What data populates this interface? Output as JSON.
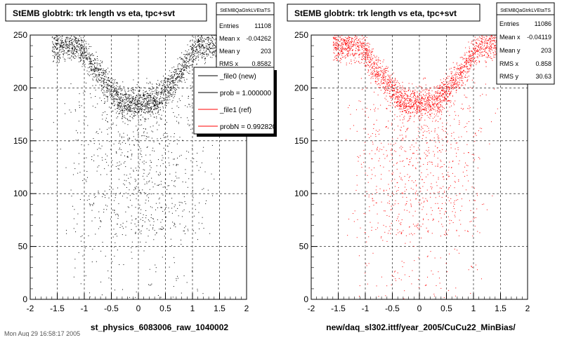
{
  "panels": [
    {
      "title": "StEMB globtrk: trk length vs eta, tpc+svt",
      "xlabel": "st_physics_6083006_raw_1040002",
      "stats": {
        "name": "StEMBQaGtrkLVEtaTS",
        "rows": [
          {
            "label": "Entries",
            "value": "11108"
          },
          {
            "label": "Mean x",
            "value": "-0.04262"
          },
          {
            "label": "Mean y",
            "value": "203"
          },
          {
            "label": "RMS x",
            "value": "0.8582"
          }
        ]
      },
      "legend": {
        "entries": [
          {
            "label": "_file0 (new)",
            "color": "#000000"
          },
          {
            "label": "prob = 1.000000",
            "color": "#000000"
          },
          {
            "label": "_file1 (ref)",
            "color": "#ff0000"
          },
          {
            "label": "probN = 0.992820",
            "color": "#ff0000"
          }
        ]
      },
      "point_color": "#000000",
      "seed": 11
    },
    {
      "title": "StEMB globtrk: trk length vs eta, tpc+svt",
      "xlabel": "new/daq_sl302.ittf/year_2005/CuCu22_MinBias/",
      "stats": {
        "name": "StEMBQaGtrkLVEtaTS",
        "rows": [
          {
            "label": "Entries",
            "value": "11086"
          },
          {
            "label": "Mean x",
            "value": "-0.04119"
          },
          {
            "label": "Mean y",
            "value": "203"
          },
          {
            "label": "RMS x",
            "value": "0.858"
          },
          {
            "label": "RMS y",
            "value": "30.63"
          }
        ]
      },
      "point_color": "#ff0000",
      "seed": 29
    }
  ],
  "footer_text": "Mon Aug 29 16:58:17 2005",
  "chart_data": [
    {
      "type": "scatter",
      "title": "StEMB globtrk: trk length vs eta, tpc+svt",
      "xlabel": "st_physics_6083006_raw_1040002",
      "ylabel": "",
      "xlim": [
        -2,
        2
      ],
      "ylim": [
        0,
        250
      ],
      "xticks": [
        -2,
        -1.5,
        -1,
        -0.5,
        0,
        0.5,
        1,
        1.5,
        2
      ],
      "yticks": [
        0,
        50,
        100,
        150,
        200,
        250
      ],
      "grid": true,
      "point_color": "#000000",
      "entries": 11108,
      "description_points": [
        {
          "x": -1.25,
          "y": 225
        },
        {
          "x": -1.0,
          "y": 235
        },
        {
          "x": -0.7,
          "y": 215
        },
        {
          "x": -0.4,
          "y": 200
        },
        {
          "x": -0.1,
          "y": 188
        },
        {
          "x": 0.1,
          "y": 188
        },
        {
          "x": 0.4,
          "y": 200
        },
        {
          "x": 0.7,
          "y": 215
        },
        {
          "x": 1.0,
          "y": 235
        },
        {
          "x": 1.3,
          "y": 240
        }
      ]
    },
    {
      "type": "scatter",
      "title": "StEMB globtrk: trk length vs eta, tpc+svt",
      "xlabel": "new/daq_sl302.ittf/year_2005/CuCu22_MinBias/",
      "ylabel": "",
      "xlim": [
        -2,
        2
      ],
      "ylim": [
        0,
        250
      ],
      "xticks": [
        -2,
        -1.5,
        -1,
        -0.5,
        0,
        0.5,
        1,
        1.5,
        2
      ],
      "yticks": [
        0,
        50,
        100,
        150,
        200,
        250
      ],
      "grid": true,
      "point_color": "#ff0000",
      "entries": 11086,
      "description_points": [
        {
          "x": -1.25,
          "y": 225
        },
        {
          "x": -1.0,
          "y": 235
        },
        {
          "x": -0.7,
          "y": 215
        },
        {
          "x": -0.4,
          "y": 200
        },
        {
          "x": -0.1,
          "y": 188
        },
        {
          "x": 0.1,
          "y": 188
        },
        {
          "x": 0.4,
          "y": 200
        },
        {
          "x": 0.7,
          "y": 215
        },
        {
          "x": 1.0,
          "y": 235
        },
        {
          "x": 1.3,
          "y": 240
        }
      ]
    }
  ]
}
